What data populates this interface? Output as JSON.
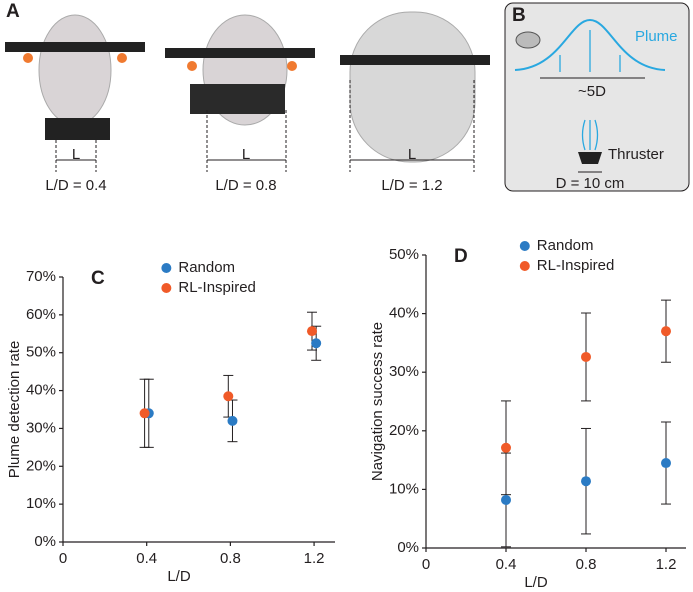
{
  "panel_a": {
    "label": "A",
    "robots": [
      {
        "length_label": "L",
        "caption": "L/D = 0.4"
      },
      {
        "length_label": "L",
        "caption": "L/D = 0.8"
      },
      {
        "length_label": "L",
        "caption": "L/D = 1.2"
      }
    ]
  },
  "panel_b": {
    "label": "B",
    "plume": "Plume",
    "spacing": "~5D",
    "thruster": "Thruster",
    "diameter": "D = 10 cm"
  },
  "chart_data": [
    {
      "type": "scatter",
      "label": "C",
      "xlabel": "L/D",
      "ylabel": "Plume detection rate",
      "xlim": [
        0,
        1.3
      ],
      "xticks": [
        0,
        0.4,
        0.8,
        1.2
      ],
      "ylim": [
        0,
        70
      ],
      "yticks": [
        {
          "value": 0,
          "label": "0%"
        },
        {
          "value": 10,
          "label": "10%"
        },
        {
          "value": 20,
          "label": "20%"
        },
        {
          "value": 30,
          "label": "30%"
        },
        {
          "value": 40,
          "label": "40%"
        },
        {
          "value": 50,
          "label": "50%"
        },
        {
          "value": 60,
          "label": "60%"
        },
        {
          "value": 70,
          "label": "70%"
        }
      ],
      "legend": "upper center",
      "series": [
        {
          "name": "Random",
          "color": "#2b7bc4",
          "x": [
            0.41,
            0.81,
            1.21
          ],
          "values": [
            34,
            32,
            52.5
          ],
          "errors": [
            9,
            5.5,
            4.5
          ]
        },
        {
          "name": "RL-Inspired",
          "color": "#f05a28",
          "x": [
            0.39,
            0.79,
            1.19
          ],
          "values": [
            34,
            38.5,
            55.7
          ],
          "errors": [
            9,
            5.5,
            5
          ]
        }
      ]
    },
    {
      "type": "scatter",
      "label": "D",
      "xlabel": "L/D",
      "ylabel": "Navigation success rate",
      "xlim": [
        0,
        1.3
      ],
      "xticks": [
        0,
        0.4,
        0.8,
        1.2
      ],
      "ylim": [
        0,
        50
      ],
      "yticks": [
        {
          "value": 0,
          "label": "0%"
        },
        {
          "value": 10,
          "label": "10%"
        },
        {
          "value": 20,
          "label": "20%"
        },
        {
          "value": 30,
          "label": "30%"
        },
        {
          "value": 40,
          "label": "40%"
        },
        {
          "value": 50,
          "label": "50%"
        }
      ],
      "legend": "upper center",
      "series": [
        {
          "name": "Random",
          "color": "#2b7bc4",
          "x": [
            0.4,
            0.8,
            1.2
          ],
          "values": [
            8.2,
            11.4,
            14.5
          ],
          "errors": [
            8,
            9,
            7
          ]
        },
        {
          "name": "RL-Inspired",
          "color": "#f05a28",
          "x": [
            0.4,
            0.8,
            1.2
          ],
          "values": [
            17.1,
            32.6,
            37
          ],
          "errors": [
            8,
            7.5,
            5.3
          ]
        }
      ]
    }
  ]
}
